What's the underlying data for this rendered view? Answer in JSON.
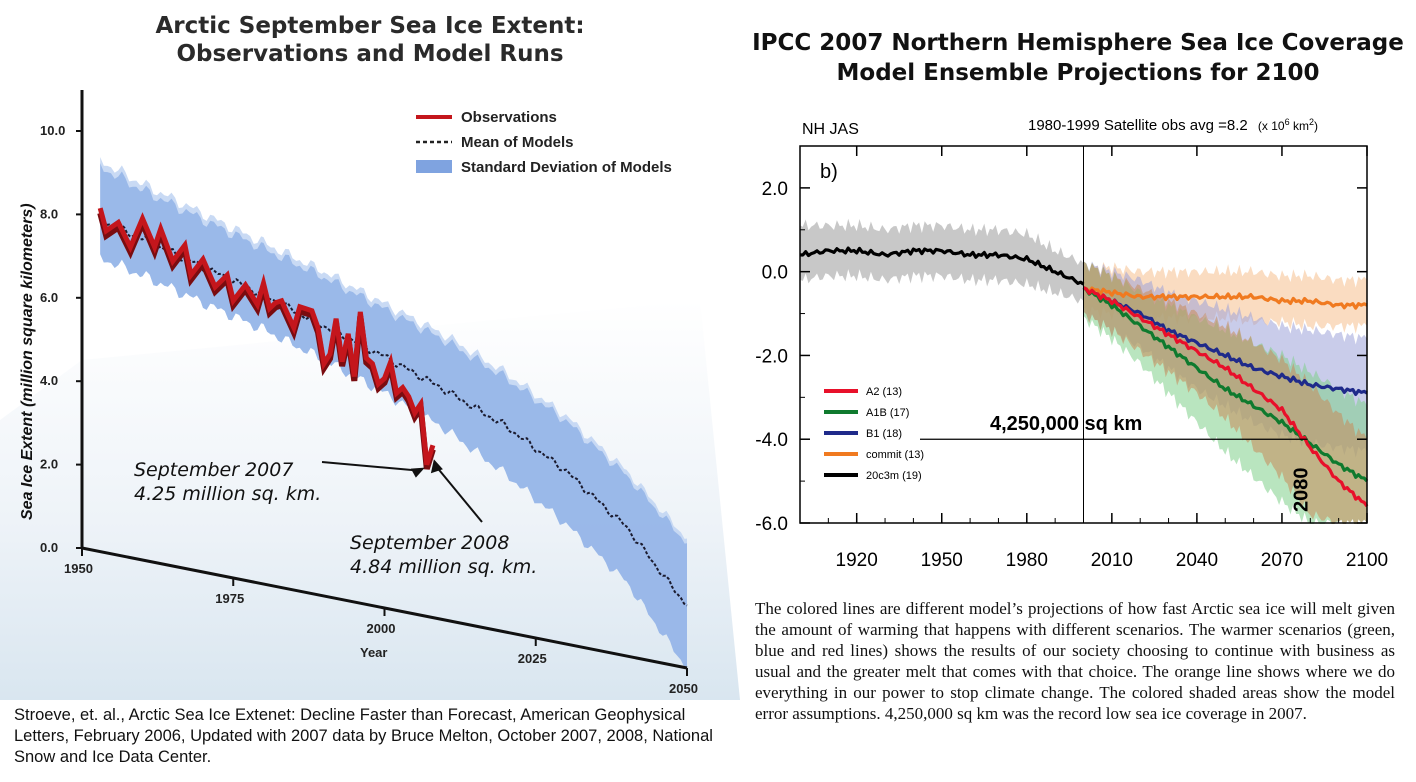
{
  "left": {
    "title_line1": "Arctic September Sea Ice Extent:",
    "title_line2": "Observations and Model Runs",
    "citation": "Stroeve, et. al., Arctic Sea Ice Extenet: Decline Faster than Forecast, American Geophysical Letters,  February 2006, Updated with 2007 data by Bruce Melton, October 2007, 2008, National Snow and Ice Data Center.",
    "annotations": [
      {
        "line1": "September 2007",
        "line2": "4.25 million sq. km."
      },
      {
        "line1": "September 2008",
        "line2": "4.84 million sq. km."
      }
    ],
    "colors": {
      "observations": "#c4161c",
      "band": "#8fb0e6",
      "band_edge": "#6f95d6",
      "mean": "#1a1a2e"
    }
  },
  "right": {
    "title_line1": "IPCC 2007 Northern Hemisphere Sea Ice Coverage",
    "title_line2": "Model Ensemble Projections for 2100",
    "panel_label_left": "NH JAS",
    "panel_label_right": "1980-1999 Satellite obs avg =8.2",
    "panel_label_units": "(x 10",
    "panel_label_units_exp": "6",
    "panel_label_units_end": " km",
    "panel_label_units_exp2": "2",
    "panel_label_units_close": ")",
    "panel_letter": "b)",
    "annotation_value": "4,250,000 sq km",
    "annotation_year": "2080",
    "caption": "The colored lines are different model’s projections of how fast Arctic sea ice will melt  given the amount of warming that happens with different scenarios.  The warmer scenarios (green, blue and red lines) shows the results of our society choosing to continue with business as usual and the greater melt that comes with that choice. The orange line shows where we do everything in our power to stop climate change.  The colored shaded areas show the model error assumptions. 4,250,000 sq km was the record low sea ice coverage in 2007.",
    "colors": {
      "A2": "#e8102a",
      "A1B": "#0f7a2e",
      "B1": "#1f2a8a",
      "commit": "#f07a20",
      "20c3m": "#000000"
    }
  },
  "chart_data": [
    {
      "type": "line",
      "title": "Arctic September Sea Ice Extent: Observations and Model Runs",
      "xlabel": "Year",
      "ylabel": "Sea Ice Extent (million square kilometers)",
      "xlim": [
        1950,
        2050
      ],
      "ylim": [
        0,
        10
      ],
      "x_ticks": [
        "1950",
        "1975",
        "2000",
        "2025",
        "2050"
      ],
      "y_ticks": [
        "0.0",
        "2.0",
        "4.0",
        "6.0",
        "8.0",
        "10.0"
      ],
      "legend": [
        "Observations",
        "Mean of Models",
        "Standard Deviation of Models"
      ],
      "legend_position": "top-right",
      "series": [
        {
          "name": "Observations",
          "x": [
            1953,
            1954,
            1956,
            1958,
            1960,
            1962,
            1963,
            1965,
            1967,
            1968,
            1970,
            1972,
            1974,
            1975,
            1977,
            1979,
            1980,
            1981,
            1982,
            1983,
            1984,
            1985,
            1986,
            1987,
            1988,
            1989,
            1990,
            1991,
            1992,
            1993,
            1994,
            1995,
            1996,
            1997,
            1998,
            1999,
            2000,
            2001,
            2002,
            2003,
            2004,
            2005,
            2006,
            2007,
            2008
          ],
          "values": [
            8.3,
            7.8,
            8.1,
            7.6,
            8.4,
            7.8,
            8.3,
            7.6,
            8.1,
            7.4,
            7.9,
            7.3,
            7.7,
            7.1,
            7.6,
            7.2,
            7.8,
            7.2,
            7.4,
            7.5,
            7.2,
            6.9,
            7.5,
            7.5,
            7.5,
            7.1,
            6.2,
            6.5,
            7.5,
            6.4,
            7.2,
            6.1,
            7.9,
            6.7,
            6.6,
            6.1,
            6.3,
            6.8,
            6.0,
            6.2,
            6.0,
            5.6,
            5.9,
            4.25,
            4.84
          ]
        },
        {
          "name": "Mean of Models",
          "x": [
            1953,
            1960,
            1970,
            1980,
            1990,
            2000,
            2010,
            2020,
            2030,
            2040,
            2050
          ],
          "values": [
            8.0,
            7.9,
            7.7,
            7.5,
            7.2,
            6.9,
            6.5,
            6.0,
            5.2,
            4.0,
            2.0
          ]
        },
        {
          "name": "Standard Deviation of Models (upper)",
          "x": [
            1953,
            1960,
            1970,
            1980,
            1990,
            2000,
            2010,
            2020,
            2030,
            2040,
            2050
          ],
          "values": [
            9.3,
            9.1,
            8.9,
            8.7,
            8.5,
            8.2,
            7.9,
            7.4,
            6.7,
            5.6,
            4.0
          ]
        },
        {
          "name": "Standard Deviation of Models (lower)",
          "x": [
            1953,
            1960,
            1970,
            1980,
            1990,
            2000,
            2010,
            2020,
            2030,
            2040,
            2050
          ],
          "values": [
            7.1,
            7.0,
            6.8,
            6.6,
            6.3,
            5.9,
            5.4,
            4.6,
            3.6,
            2.3,
            0.0
          ]
        }
      ],
      "annotations": [
        {
          "text": "September 2007 4.25 million sq. km.",
          "x": 2007,
          "y": 4.25
        },
        {
          "text": "September 2008 4.84 million sq. km.",
          "x": 2008,
          "y": 4.84
        }
      ]
    },
    {
      "type": "line",
      "title": "IPCC 2007 Northern Hemisphere Sea Ice Coverage Model Ensemble Projections for 2100",
      "xlim": [
        1900,
        2100
      ],
      "ylim": [
        -6,
        3
      ],
      "x_ticks": [
        "1920",
        "1950",
        "1980",
        "2010",
        "2040",
        "2070",
        "2100"
      ],
      "y_ticks": [
        "2.0",
        "0.0",
        "-2.0",
        "-4.0",
        "-6.0"
      ],
      "legend": [
        "A2 (13)",
        "A1B (17)",
        "B1 (18)",
        "commit (13)",
        "20c3m (19)"
      ],
      "legend_position": "lower-left",
      "reference_line": {
        "x": 2000
      },
      "series": [
        {
          "name": "20c3m (19)",
          "x": [
            1900,
            1910,
            1920,
            1930,
            1940,
            1950,
            1960,
            1970,
            1980,
            1990,
            2000
          ],
          "values": [
            0.4,
            0.5,
            0.5,
            0.4,
            0.5,
            0.5,
            0.4,
            0.4,
            0.3,
            0.0,
            -0.3
          ],
          "band_low": [
            -0.2,
            -0.1,
            -0.1,
            -0.2,
            -0.1,
            -0.1,
            -0.2,
            -0.2,
            -0.3,
            -0.5,
            -0.7
          ],
          "band_high": [
            1.1,
            1.1,
            1.1,
            1.0,
            1.1,
            1.1,
            1.0,
            1.0,
            0.9,
            0.5,
            0.2
          ]
        },
        {
          "name": "commit (13)",
          "x": [
            2000,
            2010,
            2020,
            2030,
            2040,
            2050,
            2060,
            2070,
            2080,
            2090,
            2100
          ],
          "values": [
            -0.4,
            -0.5,
            -0.6,
            -0.6,
            -0.6,
            -0.6,
            -0.6,
            -0.7,
            -0.7,
            -0.8,
            -0.8
          ],
          "band_low": [
            -0.9,
            -1.0,
            -1.1,
            -1.1,
            -1.1,
            -1.1,
            -1.2,
            -1.2,
            -1.3,
            -1.3,
            -1.3
          ],
          "band_high": [
            0.1,
            0.1,
            0.0,
            0.0,
            0.0,
            0.0,
            0.0,
            -0.1,
            -0.1,
            -0.2,
            -0.2
          ]
        },
        {
          "name": "B1 (18)",
          "x": [
            2000,
            2010,
            2020,
            2030,
            2040,
            2050,
            2060,
            2070,
            2080,
            2090,
            2100
          ],
          "values": [
            -0.4,
            -0.7,
            -1.0,
            -1.4,
            -1.7,
            -2.0,
            -2.3,
            -2.5,
            -2.7,
            -2.8,
            -2.9
          ],
          "band_low": [
            -1.0,
            -1.4,
            -1.8,
            -2.3,
            -2.8,
            -3.2,
            -3.6,
            -3.9,
            -4.1,
            -4.2,
            -4.3
          ],
          "band_high": [
            0.2,
            0.0,
            -0.2,
            -0.5,
            -0.7,
            -0.9,
            -1.1,
            -1.3,
            -1.4,
            -1.5,
            -1.6
          ]
        },
        {
          "name": "A1B (17)",
          "x": [
            2000,
            2010,
            2020,
            2030,
            2040,
            2050,
            2060,
            2070,
            2080,
            2090,
            2100
          ],
          "values": [
            -0.4,
            -0.8,
            -1.3,
            -1.8,
            -2.3,
            -2.8,
            -3.2,
            -3.6,
            -4.1,
            -4.6,
            -5.0
          ],
          "band_low": [
            -1.1,
            -1.6,
            -2.2,
            -2.9,
            -3.6,
            -4.3,
            -4.9,
            -5.5,
            -6.0,
            -6.0,
            -6.0
          ],
          "band_high": [
            0.2,
            -0.1,
            -0.5,
            -0.8,
            -1.1,
            -1.4,
            -1.7,
            -2.0,
            -2.4,
            -2.8,
            -3.2
          ]
        },
        {
          "name": "A2 (13)",
          "x": [
            2000,
            2010,
            2020,
            2030,
            2040,
            2050,
            2060,
            2070,
            2080,
            2090,
            2100
          ],
          "values": [
            -0.4,
            -0.7,
            -1.1,
            -1.5,
            -1.9,
            -2.3,
            -2.8,
            -3.3,
            -4.2,
            -5.0,
            -5.6
          ],
          "band_low": [
            -1.0,
            -1.4,
            -1.9,
            -2.4,
            -2.9,
            -3.5,
            -4.2,
            -4.9,
            -5.8,
            -6.0,
            -6.0
          ],
          "band_high": [
            0.2,
            -0.1,
            -0.4,
            -0.7,
            -1.0,
            -1.3,
            -1.7,
            -2.1,
            -2.7,
            -3.4,
            -4.0
          ]
        }
      ],
      "annotations": [
        {
          "text": "4,250,000 sq km",
          "y": -4.0
        },
        {
          "text": "2080",
          "x": 2080
        }
      ]
    }
  ]
}
